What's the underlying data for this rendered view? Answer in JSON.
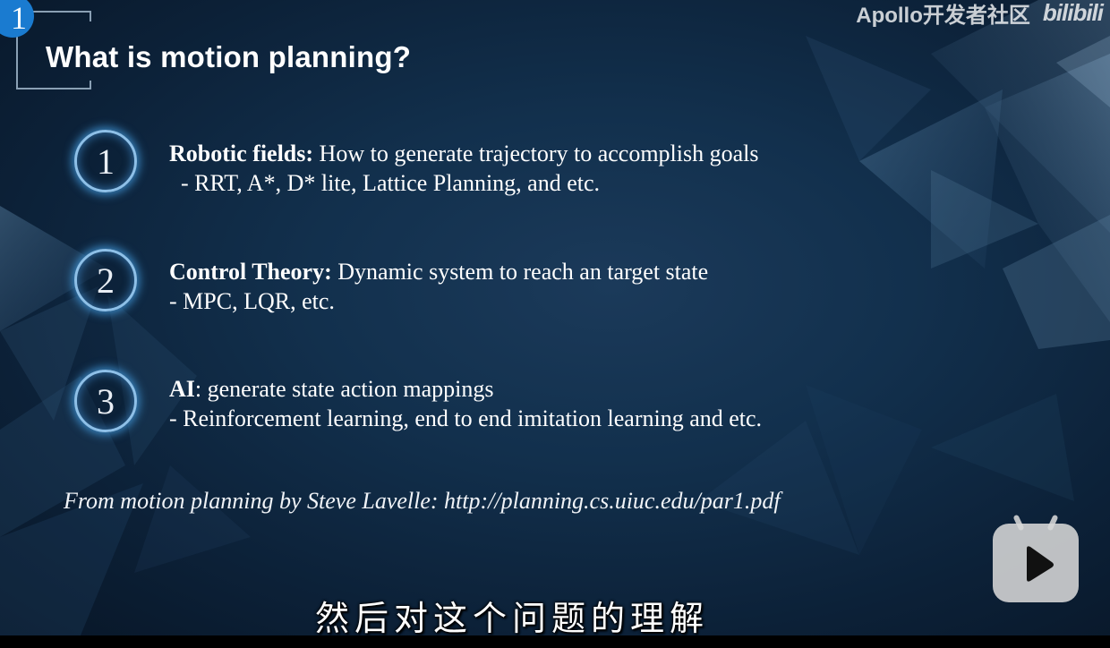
{
  "slide": {
    "number": "1",
    "title": "What is motion planning?"
  },
  "watermark": {
    "text": "Apollo开发者社区",
    "logo": "bilibili"
  },
  "items": [
    {
      "number": "1",
      "heading": "Robotic fields:",
      "text": " How to generate trajectory to accomplish goals",
      "detail": "  - RRT, A*, D* lite, Lattice Planning, and etc."
    },
    {
      "number": "2",
      "heading": "Control Theory:",
      "text": " Dynamic system to reach an target state",
      "detail": "- MPC, LQR, etc."
    },
    {
      "number": "3",
      "heading": "AI",
      "text": ": generate state action mappings",
      "detail": "- Reinforcement learning, end to end imitation learning and etc."
    }
  ],
  "citation": "From motion planning by Steve Lavelle: http://planning.cs.uiuc.edu/par1.pdf",
  "subtitle": "然后对这个问题的理解",
  "icons": {
    "play": "play-icon"
  },
  "colors": {
    "background": "#12304d",
    "circle_glow": "#46a0e6",
    "badge": "#1a7bd0"
  }
}
